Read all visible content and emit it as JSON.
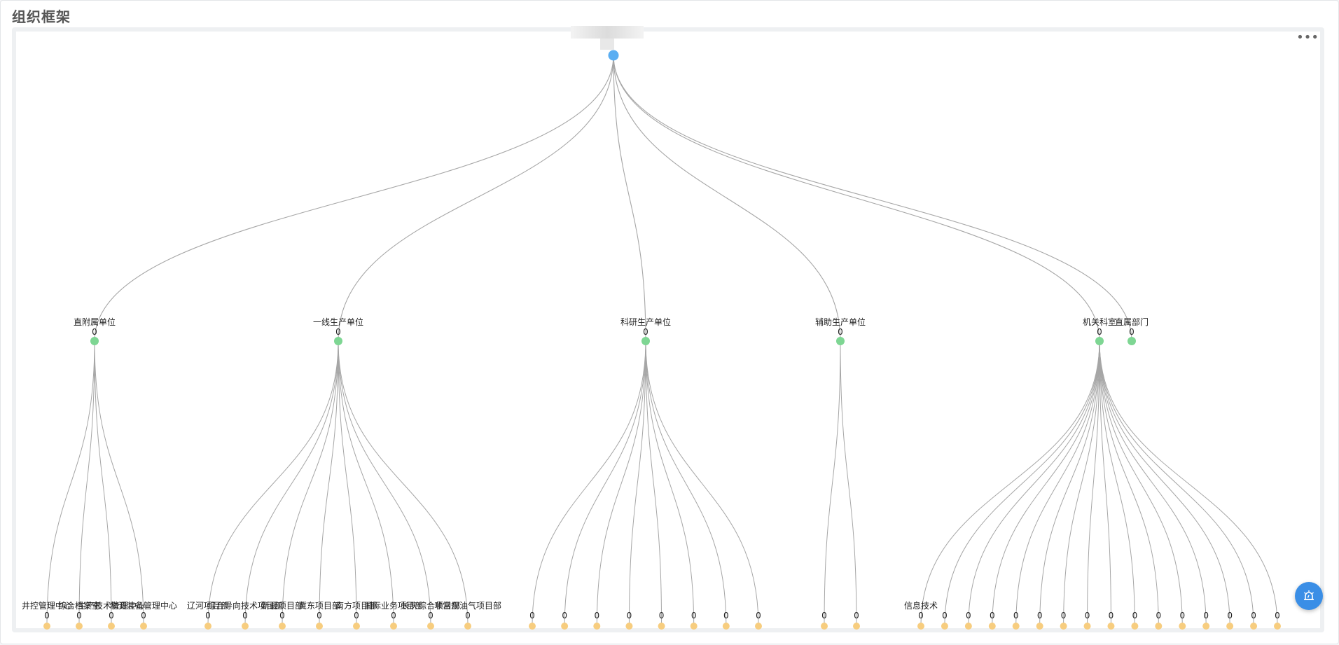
{
  "page": {
    "title": "组织框架",
    "menu_icon": "more-horizontal-icon",
    "fab_icon": "alarm-bell-icon"
  },
  "colors": {
    "root": "#5aaef2",
    "level1": "#7ed693",
    "level2": "#f7cd7f",
    "edge": "#a6a6a6",
    "fab": "#3a8ee6"
  },
  "tree": {
    "root": {
      "label": "",
      "value": ""
    },
    "groups": [
      {
        "label": "直附属单位",
        "value": "0",
        "children": [
          {
            "label": "井控管理中心",
            "value": "0"
          },
          {
            "label": "综合档案室",
            "value": "0"
          },
          {
            "label": "生产技术管理中心",
            "value": "0"
          },
          {
            "label": "物资装备管理中心",
            "value": "0"
          }
        ]
      },
      {
        "label": "一线生产单位",
        "value": "0",
        "children": [
          {
            "label": "辽河项目部",
            "value": "0"
          },
          {
            "label": "综合导向技术项目部",
            "value": "0"
          },
          {
            "label": "新疆项目部",
            "value": "0"
          },
          {
            "label": "冀东项目部",
            "value": "0"
          },
          {
            "label": "南方项目部",
            "value": "0"
          },
          {
            "label": "国际业务项目部",
            "value": "0"
          },
          {
            "label": "长庆综合项目部",
            "value": "0"
          },
          {
            "label": "非常规油气项目部",
            "value": "0"
          }
        ]
      },
      {
        "label": "科研生产单位",
        "value": "0",
        "children": [
          {
            "label": "",
            "value": "0"
          },
          {
            "label": "",
            "value": "0"
          },
          {
            "label": "",
            "value": "0"
          },
          {
            "label": "",
            "value": "0"
          },
          {
            "label": "",
            "value": "0"
          },
          {
            "label": "",
            "value": "0"
          },
          {
            "label": "",
            "value": "0"
          },
          {
            "label": "",
            "value": "0"
          }
        ]
      },
      {
        "label": "辅助生产单位",
        "value": "0",
        "children": [
          {
            "label": "",
            "value": "0"
          },
          {
            "label": "",
            "value": "0"
          }
        ]
      },
      {
        "label": "机关科室",
        "value": "0",
        "children": [
          {
            "label": "信息技术",
            "value": "0"
          },
          {
            "label": "",
            "value": "0"
          },
          {
            "label": "",
            "value": "0"
          },
          {
            "label": "",
            "value": "0"
          },
          {
            "label": "",
            "value": "0"
          },
          {
            "label": "",
            "value": "0"
          },
          {
            "label": "",
            "value": "0"
          },
          {
            "label": "",
            "value": "0"
          },
          {
            "label": "",
            "value": "0"
          },
          {
            "label": "",
            "value": "0"
          },
          {
            "label": "",
            "value": "0"
          },
          {
            "label": "",
            "value": "0"
          },
          {
            "label": "",
            "value": "0"
          },
          {
            "label": "",
            "value": "0"
          },
          {
            "label": "",
            "value": "0"
          },
          {
            "label": "",
            "value": "0"
          }
        ]
      },
      {
        "label": "直属部门",
        "value": "0",
        "children": []
      }
    ]
  }
}
